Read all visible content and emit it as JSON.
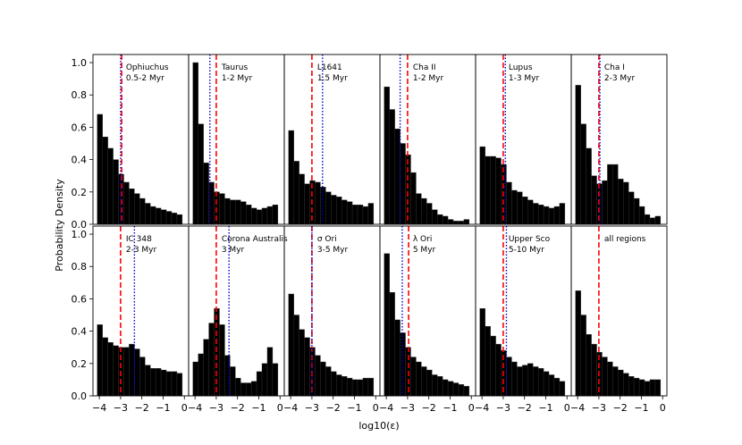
{
  "chart_data": {
    "type": "bar",
    "title": "",
    "xlabel": "log10(ε)",
    "ylabel": "Probability Density",
    "xlim": [
      -4.3,
      0.2
    ],
    "ylim": [
      0,
      1.05
    ],
    "grid": false,
    "bin_edges": [
      -4.1,
      -3.85,
      -3.6,
      -3.35,
      -3.1,
      -2.85,
      -2.6,
      -2.35,
      -2.1,
      -1.85,
      -1.6,
      -1.35,
      -1.1,
      -0.85,
      -0.6,
      -0.35,
      -0.1
    ],
    "x_ticks": [
      -4,
      -3,
      -2,
      -1,
      0
    ],
    "x_tick_labels": [
      "−4",
      "−3",
      "−2",
      "−1",
      "0"
    ],
    "y_ticks": [
      0,
      0.2,
      0.4,
      0.6,
      0.8,
      1.0
    ],
    "y_tick_labels": [
      "0.0",
      "0.2",
      "0.4",
      "0.6",
      "0.8",
      "1.0"
    ],
    "panels": [
      {
        "name": "Ophiuchus",
        "age": "0.5-2 Myr",
        "red_dashed": -2.95,
        "blue_dotted": -3.0,
        "values": [
          0.68,
          0.54,
          0.47,
          0.4,
          0.31,
          0.26,
          0.22,
          0.19,
          0.16,
          0.13,
          0.11,
          0.1,
          0.09,
          0.08,
          0.07,
          0.06
        ]
      },
      {
        "name": "Taurus",
        "age": "1-2 Myr",
        "red_dashed": -3.0,
        "blue_dotted": -3.3,
        "values": [
          1.0,
          0.62,
          0.38,
          0.26,
          0.2,
          0.19,
          0.16,
          0.15,
          0.15,
          0.14,
          0.12,
          0.1,
          0.09,
          0.1,
          0.11,
          0.12
        ]
      },
      {
        "name": "L1641",
        "age": "1.5 Myr",
        "red_dashed": -3.0,
        "blue_dotted": -2.5,
        "values": [
          0.58,
          0.39,
          0.31,
          0.25,
          0.27,
          0.26,
          0.23,
          0.2,
          0.18,
          0.17,
          0.15,
          0.14,
          0.12,
          0.12,
          0.11,
          0.13
        ]
      },
      {
        "name": "Cha II",
        "age": "1-2 Myr",
        "red_dashed": -3.0,
        "blue_dotted": -3.35,
        "values": [
          0.85,
          0.71,
          0.59,
          0.5,
          0.43,
          0.32,
          0.19,
          0.16,
          0.13,
          0.09,
          0.06,
          0.05,
          0.03,
          0.02,
          0.02,
          0.03
        ]
      },
      {
        "name": "Lupus",
        "age": "1-3 Myr",
        "red_dashed": -3.0,
        "blue_dotted": -2.9,
        "values": [
          0.48,
          0.42,
          0.42,
          0.41,
          0.37,
          0.26,
          0.21,
          0.2,
          0.17,
          0.15,
          0.13,
          0.12,
          0.11,
          0.1,
          0.11,
          0.13
        ]
      },
      {
        "name": "Cha I",
        "age": "2-3 Myr",
        "red_dashed": -3.0,
        "blue_dotted": -2.95,
        "values": [
          0.86,
          0.62,
          0.47,
          0.3,
          0.25,
          0.27,
          0.37,
          0.37,
          0.28,
          0.26,
          0.2,
          0.16,
          0.11,
          0.06,
          0.04,
          0.05
        ]
      },
      {
        "name": "IC 348",
        "age": "2-3 Myr",
        "red_dashed": -3.0,
        "blue_dotted": -2.35,
        "values": [
          0.44,
          0.36,
          0.33,
          0.31,
          0.3,
          0.3,
          0.32,
          0.29,
          0.24,
          0.19,
          0.17,
          0.17,
          0.16,
          0.15,
          0.15,
          0.14
        ]
      },
      {
        "name": "Corona Australis",
        "age": "3 Myr",
        "red_dashed": -3.0,
        "blue_dotted": -2.4,
        "values": [
          0.21,
          0.26,
          0.35,
          0.45,
          0.54,
          0.44,
          0.25,
          0.18,
          0.11,
          0.08,
          0.08,
          0.09,
          0.15,
          0.2,
          0.3,
          0.2
        ]
      },
      {
        "name": "σ Ori",
        "age": "3-5 Myr",
        "red_dashed": -3.0,
        "blue_dotted": -3.0,
        "values": [
          0.63,
          0.5,
          0.41,
          0.36,
          0.3,
          0.25,
          0.21,
          0.18,
          0.15,
          0.13,
          0.12,
          0.11,
          0.1,
          0.1,
          0.11,
          0.11
        ]
      },
      {
        "name": "λ Ori",
        "age": "5 Myr",
        "red_dashed": -2.95,
        "blue_dotted": -3.25,
        "values": [
          0.88,
          0.64,
          0.47,
          0.39,
          0.3,
          0.24,
          0.21,
          0.18,
          0.16,
          0.13,
          0.12,
          0.1,
          0.09,
          0.08,
          0.07,
          0.06
        ]
      },
      {
        "name": "Upper Sco",
        "age": "5-10 Myr",
        "red_dashed": -3.0,
        "blue_dotted": -2.85,
        "values": [
          0.54,
          0.43,
          0.37,
          0.32,
          0.28,
          0.24,
          0.21,
          0.18,
          0.19,
          0.2,
          0.18,
          0.17,
          0.15,
          0.13,
          0.11,
          0.09
        ]
      },
      {
        "name": "all regions",
        "age": "",
        "red_dashed": -3.0,
        "blue_dotted": null,
        "values": [
          0.65,
          0.5,
          0.38,
          0.32,
          0.27,
          0.24,
          0.21,
          0.18,
          0.16,
          0.14,
          0.12,
          0.11,
          0.1,
          0.09,
          0.1,
          0.1
        ]
      }
    ]
  },
  "colors": {
    "bar": "#000000",
    "bar_edge": "#333333",
    "red_line": "#ff0000",
    "blue_line": "#0000cc",
    "axes": "#000000",
    "background": "#ffffff"
  }
}
